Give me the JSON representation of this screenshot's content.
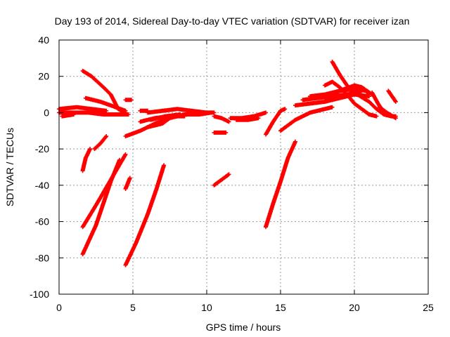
{
  "chart_data": {
    "type": "scatter",
    "title": "Day 193 of 2014, Sidereal Day-to-day VTEC variation (SDTVAR) for receiver izan",
    "xlabel": "GPS time / hours",
    "ylabel": "SDTVAR / TECUs",
    "xlim": [
      0,
      25
    ],
    "ylim": [
      -100,
      40
    ],
    "xticks": [
      "0",
      "5",
      "10",
      "15",
      "20",
      "25"
    ],
    "yticks": [
      "40",
      "20",
      "0",
      "-20",
      "-40",
      "-60",
      "-80",
      "-100"
    ],
    "grid": true,
    "marker": "+",
    "color": "#ff0000",
    "tracks": [
      [
        [
          0,
          2
        ],
        [
          1.2,
          3
        ],
        [
          2.2,
          2
        ],
        [
          3.2,
          1
        ]
      ],
      [
        [
          0,
          0
        ],
        [
          1.0,
          0
        ],
        [
          2.0,
          0
        ],
        [
          3.0,
          -1
        ],
        [
          4.0,
          -1
        ],
        [
          4.7,
          -1
        ]
      ],
      [
        [
          0.2,
          -2
        ],
        [
          1.0,
          -1
        ]
      ],
      [
        [
          1.6,
          23
        ],
        [
          2.2,
          20
        ],
        [
          3.0,
          14
        ],
        [
          3.5,
          10
        ],
        [
          4.0,
          2
        ],
        [
          4.5,
          0
        ]
      ],
      [
        [
          1.8,
          8
        ],
        [
          2.8,
          6
        ],
        [
          3.5,
          4
        ],
        [
          4.5,
          1
        ]
      ],
      [
        [
          4.5,
          7
        ],
        [
          4.9,
          7
        ]
      ],
      [
        [
          1.6,
          -32
        ],
        [
          1.8,
          -25
        ],
        [
          2.1,
          -20
        ]
      ],
      [
        [
          2.4,
          -20
        ],
        [
          2.8,
          -17
        ],
        [
          3.2,
          -13
        ]
      ],
      [
        [
          1.6,
          -63
        ],
        [
          2.5,
          -51
        ],
        [
          3.5,
          -37
        ],
        [
          4.5,
          -23
        ]
      ],
      [
        [
          1.6,
          -78
        ],
        [
          2.5,
          -62
        ],
        [
          3.0,
          -50
        ],
        [
          3.5,
          -38
        ],
        [
          4.1,
          -26
        ]
      ],
      [
        [
          4.5,
          -42
        ],
        [
          4.8,
          -36
        ]
      ],
      [
        [
          4.5,
          -84
        ],
        [
          5.2,
          -72
        ],
        [
          6.0,
          -56
        ],
        [
          6.6,
          -42
        ],
        [
          7.1,
          -29
        ]
      ],
      [
        [
          4.5,
          -13
        ],
        [
          5.5,
          -10
        ],
        [
          6.5,
          -6
        ],
        [
          7.5,
          -3
        ],
        [
          8.5,
          -1
        ],
        [
          9.5,
          -1
        ],
        [
          10.3,
          0
        ]
      ],
      [
        [
          5.5,
          -5
        ],
        [
          6.5,
          -3
        ],
        [
          7.5,
          -2
        ],
        [
          8.5,
          -2
        ]
      ],
      [
        [
          6.0,
          0
        ],
        [
          7.0,
          1
        ],
        [
          8.0,
          2
        ],
        [
          9.0,
          1
        ],
        [
          10.0,
          0
        ],
        [
          10.5,
          0
        ]
      ],
      [
        [
          6.2,
          -4
        ],
        [
          7.2,
          -2
        ],
        [
          8.2,
          -1
        ]
      ],
      [
        [
          6.0,
          -8
        ],
        [
          7.0,
          -6
        ],
        [
          7.5,
          -3
        ]
      ],
      [
        [
          5.5,
          1
        ],
        [
          6.0,
          1
        ]
      ],
      [
        [
          10.5,
          -40
        ],
        [
          11.0,
          -37
        ],
        [
          11.5,
          -34
        ]
      ],
      [
        [
          10.5,
          -11
        ],
        [
          11.3,
          -11
        ]
      ],
      [
        [
          10.5,
          -2
        ],
        [
          11.0,
          -3
        ],
        [
          11.5,
          -5
        ]
      ],
      [
        [
          11.6,
          -3
        ],
        [
          12.4,
          -3
        ],
        [
          13.2,
          -2
        ],
        [
          14.0,
          0
        ]
      ],
      [
        [
          12.0,
          -4
        ],
        [
          12.8,
          -4
        ],
        [
          13.5,
          -3
        ]
      ],
      [
        [
          14.0,
          -63
        ],
        [
          14.5,
          -50
        ],
        [
          15.0,
          -38
        ],
        [
          15.5,
          -25
        ],
        [
          16.0,
          -16
        ]
      ],
      [
        [
          14.0,
          -12
        ],
        [
          14.5,
          -5
        ],
        [
          15.0,
          1
        ],
        [
          15.3,
          2
        ]
      ],
      [
        [
          15.0,
          -10
        ],
        [
          16.0,
          -4
        ],
        [
          17.0,
          0
        ],
        [
          18.0,
          2
        ],
        [
          18.5,
          3
        ]
      ],
      [
        [
          16.0,
          4
        ],
        [
          17.0,
          5
        ],
        [
          18.0,
          6
        ],
        [
          19.0,
          8
        ],
        [
          20.0,
          10
        ],
        [
          21.0,
          9
        ]
      ],
      [
        [
          16.5,
          7
        ],
        [
          17.5,
          8
        ],
        [
          18.5,
          9
        ],
        [
          19.5,
          10
        ],
        [
          20.5,
          12
        ]
      ],
      [
        [
          17.0,
          9
        ],
        [
          18.0,
          10
        ],
        [
          19.0,
          12
        ],
        [
          20.0,
          13
        ],
        [
          20.8,
          12
        ]
      ],
      [
        [
          18.5,
          28
        ],
        [
          19.0,
          21
        ],
        [
          19.5,
          15
        ],
        [
          20.0,
          11
        ],
        [
          21.0,
          6
        ],
        [
          21.5,
          2
        ],
        [
          22.0,
          -1
        ],
        [
          22.5,
          -2
        ]
      ],
      [
        [
          18.0,
          15
        ],
        [
          18.5,
          17
        ],
        [
          19.0,
          14
        ],
        [
          19.5,
          10
        ],
        [
          20.0,
          5
        ],
        [
          20.5,
          2
        ],
        [
          21.0,
          -1
        ],
        [
          21.5,
          -2
        ]
      ],
      [
        [
          18.0,
          8
        ],
        [
          19.0,
          12
        ],
        [
          20.0,
          15
        ],
        [
          20.5,
          14
        ],
        [
          21.2,
          10
        ]
      ],
      [
        [
          21.2,
          11
        ],
        [
          21.6,
          5
        ],
        [
          22.0,
          0
        ],
        [
          22.5,
          -2
        ],
        [
          22.8,
          -2
        ]
      ],
      [
        [
          21.7,
          3
        ],
        [
          22.2,
          0
        ],
        [
          22.8,
          -3
        ]
      ],
      [
        [
          22.3,
          12
        ],
        [
          22.8,
          6
        ]
      ],
      [
        [
          20.8,
          12
        ],
        [
          21.0,
          10
        ]
      ]
    ]
  }
}
